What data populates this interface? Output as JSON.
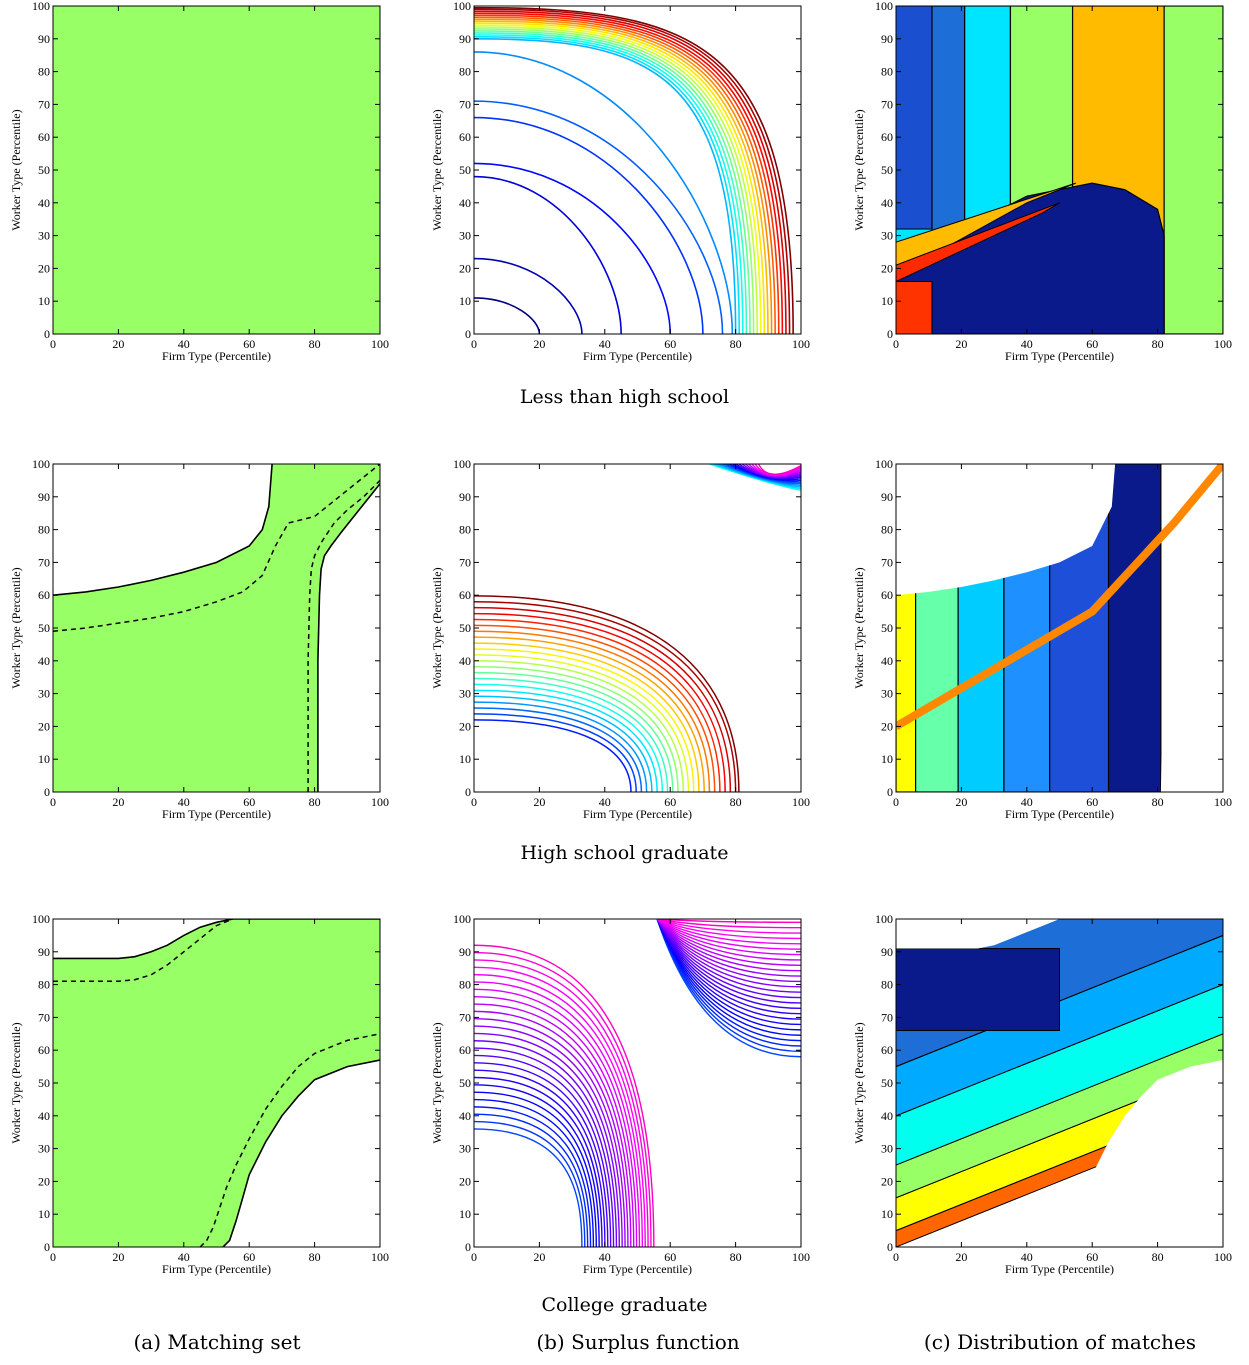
{
  "figure": {
    "row_captions": [
      "Less than high school",
      "High school graduate",
      "College graduate"
    ],
    "column_captions": [
      "(a) Matching set",
      "(b) Surplus function",
      "(c) Distribution of matches"
    ]
  },
  "chart_data": [
    {
      "id": "lths-matching",
      "type": "area",
      "row": 0,
      "col": 0,
      "xlabel": "Firm Type (Percentile)",
      "ylabel": "Worker Type (Percentile)",
      "xlim": [
        0,
        100
      ],
      "ylim": [
        0,
        100
      ],
      "xticks": [
        0,
        20,
        40,
        60,
        80,
        100
      ],
      "yticks": [
        0,
        10,
        20,
        30,
        40,
        50,
        60,
        70,
        80,
        90,
        100
      ],
      "fill_color": "#99ff66",
      "matching_set": "entire domain"
    },
    {
      "id": "lths-surplus",
      "type": "line",
      "row": 0,
      "col": 1,
      "xlabel": "Firm Type (Percentile)",
      "ylabel": "Worker Type (Percentile)",
      "xlim": [
        0,
        100
      ],
      "ylim": [
        0,
        100
      ],
      "xticks": [
        0,
        20,
        40,
        60,
        80,
        100
      ],
      "yticks": [
        0,
        10,
        20,
        30,
        40,
        50,
        60,
        70,
        80,
        90,
        100
      ],
      "contour_levels": 24
    },
    {
      "id": "lths-distribution",
      "type": "heatmap",
      "row": 0,
      "col": 2,
      "xlabel": "Firm Type (Percentile)",
      "ylabel": "Worker Type (Percentile)",
      "xlim": [
        0,
        100
      ],
      "ylim": [
        0,
        100
      ],
      "xticks": [
        0,
        20,
        40,
        60,
        80,
        100
      ],
      "yticks": [
        0,
        10,
        20,
        30,
        40,
        50,
        60,
        70,
        80,
        90,
        100
      ],
      "bands_x": [
        0,
        11,
        21,
        35,
        54,
        82,
        100
      ],
      "band_colors": [
        "#1e6ed8",
        "#00e5ff",
        "#99ff66",
        "#ffbb00",
        "#99ff66"
      ]
    },
    {
      "id": "hsg-matching",
      "type": "area",
      "row": 1,
      "col": 0,
      "xlabel": "Firm Type (Percentile)",
      "ylabel": "Worker Type (Percentile)",
      "xlim": [
        0,
        100
      ],
      "ylim": [
        0,
        100
      ],
      "xticks": [
        0,
        20,
        40,
        60,
        80,
        100
      ],
      "yticks": [
        0,
        10,
        20,
        30,
        40,
        50,
        60,
        70,
        80,
        90,
        100
      ],
      "fill_color": "#99ff66",
      "upper_boundary": {
        "x": [
          0,
          10,
          20,
          30,
          40,
          50,
          60,
          64,
          66,
          67
        ],
        "y": [
          60,
          61,
          62.5,
          64.5,
          67,
          70,
          75,
          80,
          87,
          100
        ]
      },
      "right_boundary": {
        "x": [
          81,
          81,
          81.5,
          82,
          83,
          85,
          88,
          92,
          96,
          100
        ],
        "y": [
          0,
          40,
          60,
          68,
          72,
          75,
          79,
          84,
          89,
          94
        ]
      },
      "upper_dashed": {
        "x": [
          0,
          10,
          20,
          30,
          40,
          50,
          58,
          64,
          68,
          72,
          80,
          90,
          100
        ],
        "y": [
          49,
          50,
          51.5,
          53,
          55,
          58,
          61,
          66,
          75,
          82,
          84,
          92,
          100
        ]
      },
      "right_dashed": {
        "x": [
          78,
          78,
          78.5,
          79,
          80,
          82,
          86,
          90,
          95,
          100
        ],
        "y": [
          0,
          40,
          60,
          68,
          72,
          76,
          82,
          86,
          90,
          95
        ]
      }
    },
    {
      "id": "hsg-surplus",
      "type": "line",
      "row": 1,
      "col": 1,
      "xlabel": "Firm Type (Percentile)",
      "ylabel": "Worker Type (Percentile)",
      "xlim": [
        0,
        100
      ],
      "ylim": [
        0,
        100
      ],
      "xticks": [
        0,
        20,
        40,
        60,
        80,
        100
      ],
      "yticks": [
        0,
        10,
        20,
        30,
        40,
        50,
        60,
        70,
        80,
        90,
        100
      ],
      "contour_levels": 22
    },
    {
      "id": "hsg-distribution",
      "type": "heatmap",
      "row": 1,
      "col": 2,
      "xlabel": "Firm Type (Percentile)",
      "ylabel": "Worker Type (Percentile)",
      "xlim": [
        0,
        100
      ],
      "ylim": [
        0,
        100
      ],
      "xticks": [
        0,
        20,
        40,
        60,
        80,
        100
      ],
      "yticks": [
        0,
        10,
        20,
        30,
        40,
        50,
        60,
        70,
        80,
        90,
        100
      ],
      "bands_x": [
        0,
        6,
        19,
        33,
        47,
        65,
        81
      ],
      "band_colors": [
        "#ffff00",
        "#66ffaa",
        "#00ccff",
        "#1e90ff",
        "#1e4fd8",
        "#0a1a8a"
      ]
    },
    {
      "id": "cg-matching",
      "type": "area",
      "row": 2,
      "col": 0,
      "xlabel": "Firm Type (Percentile)",
      "ylabel": "Worker Type (Percentile)",
      "xlim": [
        0,
        100
      ],
      "ylim": [
        0,
        100
      ],
      "xticks": [
        0,
        20,
        40,
        60,
        80,
        100
      ],
      "yticks": [
        0,
        10,
        20,
        30,
        40,
        50,
        60,
        70,
        80,
        90,
        100
      ],
      "fill_color": "#99ff66",
      "upper_boundary": {
        "x": [
          0,
          10,
          20,
          25,
          30,
          35,
          40,
          45,
          50,
          55,
          100
        ],
        "y": [
          88,
          88,
          88,
          88.5,
          90,
          92,
          95,
          97.5,
          99,
          100,
          100
        ]
      },
      "lower_boundary": {
        "x": [
          52,
          54,
          56,
          58,
          60,
          65,
          70,
          75,
          80,
          90,
          100
        ],
        "y": [
          0,
          2,
          8,
          15,
          22,
          32,
          40,
          46,
          51,
          55,
          57
        ]
      },
      "upper_dashed": {
        "x": [
          0,
          10,
          20,
          25,
          30,
          35,
          40,
          45,
          50,
          55
        ],
        "y": [
          81,
          81,
          81,
          81.5,
          83,
          86,
          90,
          94,
          98,
          100
        ]
      },
      "lower_dashed": {
        "x": [
          45,
          47,
          49,
          51,
          53,
          56,
          60,
          65,
          70,
          75,
          80,
          90,
          100
        ],
        "y": [
          0,
          2,
          6,
          12,
          18,
          25,
          33,
          42,
          49,
          55,
          59,
          63,
          65
        ]
      }
    },
    {
      "id": "cg-surplus",
      "type": "line",
      "row": 2,
      "col": 1,
      "xlabel": "Firm Type (Percentile)",
      "ylabel": "Worker Type (Percentile)",
      "xlim": [
        0,
        100
      ],
      "ylim": [
        0,
        100
      ],
      "xticks": [
        0,
        20,
        40,
        60,
        80,
        100
      ],
      "yticks": [
        0,
        10,
        20,
        30,
        40,
        50,
        60,
        70,
        80,
        90,
        100
      ],
      "contour_levels": 26
    },
    {
      "id": "cg-distribution",
      "type": "heatmap",
      "row": 2,
      "col": 2,
      "xlabel": "Firm Type (Percentile)",
      "ylabel": "Worker Type (Percentile)",
      "xlim": [
        0,
        100
      ],
      "ylim": [
        0,
        100
      ],
      "xticks": [
        0,
        20,
        40,
        60,
        80,
        100
      ],
      "yticks": [
        0,
        10,
        20,
        30,
        40,
        50,
        60,
        70,
        80,
        90,
        100
      ],
      "band_colors": [
        "#ff6600",
        "#ffff00",
        "#99ff66",
        "#00ffee",
        "#00aaff",
        "#1e6ed8",
        "#0a1a8a"
      ]
    }
  ]
}
